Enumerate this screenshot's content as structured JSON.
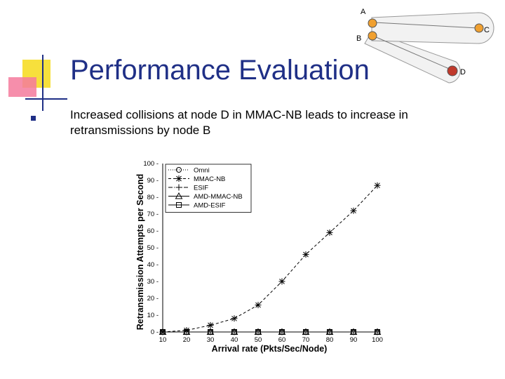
{
  "slide": {
    "title": "Performance Evaluation",
    "bullet": "Increased collisions at node D in MMAC-NB leads to increase in retransmissions by node B"
  },
  "topology": {
    "nodes": [
      "A",
      "B",
      "C",
      "D"
    ],
    "colors": {
      "orange": "#f0a030",
      "red": "#c0392b",
      "zone": "#f2f2f2"
    }
  },
  "chart_data": {
    "type": "line",
    "xlabel": "Arrival rate (Pkts/Sec/Node)",
    "ylabel": "Retransmission Attempts per Second",
    "xlim": [
      10,
      100
    ],
    "ylim": [
      0,
      100
    ],
    "x_ticks": [
      "10",
      "20",
      "30",
      "40",
      "50",
      "60",
      "70",
      "80",
      "90",
      "100"
    ],
    "y_ticks": [
      "0",
      "10",
      "20",
      "30",
      "40",
      "50",
      "60",
      "70",
      "80",
      "90",
      "100"
    ],
    "x": [
      10,
      20,
      30,
      40,
      50,
      60,
      70,
      80,
      90,
      100
    ],
    "legend_position": "top-left",
    "series": [
      {
        "name": "Omni",
        "marker": "circle",
        "values": [
          0,
          0,
          0,
          0,
          0,
          0,
          0,
          0,
          0,
          0
        ]
      },
      {
        "name": "MMAC-NB",
        "marker": "asterisk",
        "values": [
          0,
          1,
          4,
          8,
          16,
          30,
          46,
          59,
          72,
          87
        ]
      },
      {
        "name": "ESIF",
        "marker": "plus",
        "values": [
          0,
          0,
          0,
          0,
          0,
          0,
          0,
          0,
          0,
          0
        ]
      },
      {
        "name": "AMD-MMAC-NB",
        "marker": "triangle",
        "values": [
          0,
          0,
          0,
          0,
          0,
          0,
          0,
          0,
          0,
          0
        ]
      },
      {
        "name": "AMD-ESIF",
        "marker": "square",
        "values": [
          0,
          0,
          0,
          0,
          0,
          0,
          0,
          0,
          0,
          0
        ]
      }
    ]
  }
}
